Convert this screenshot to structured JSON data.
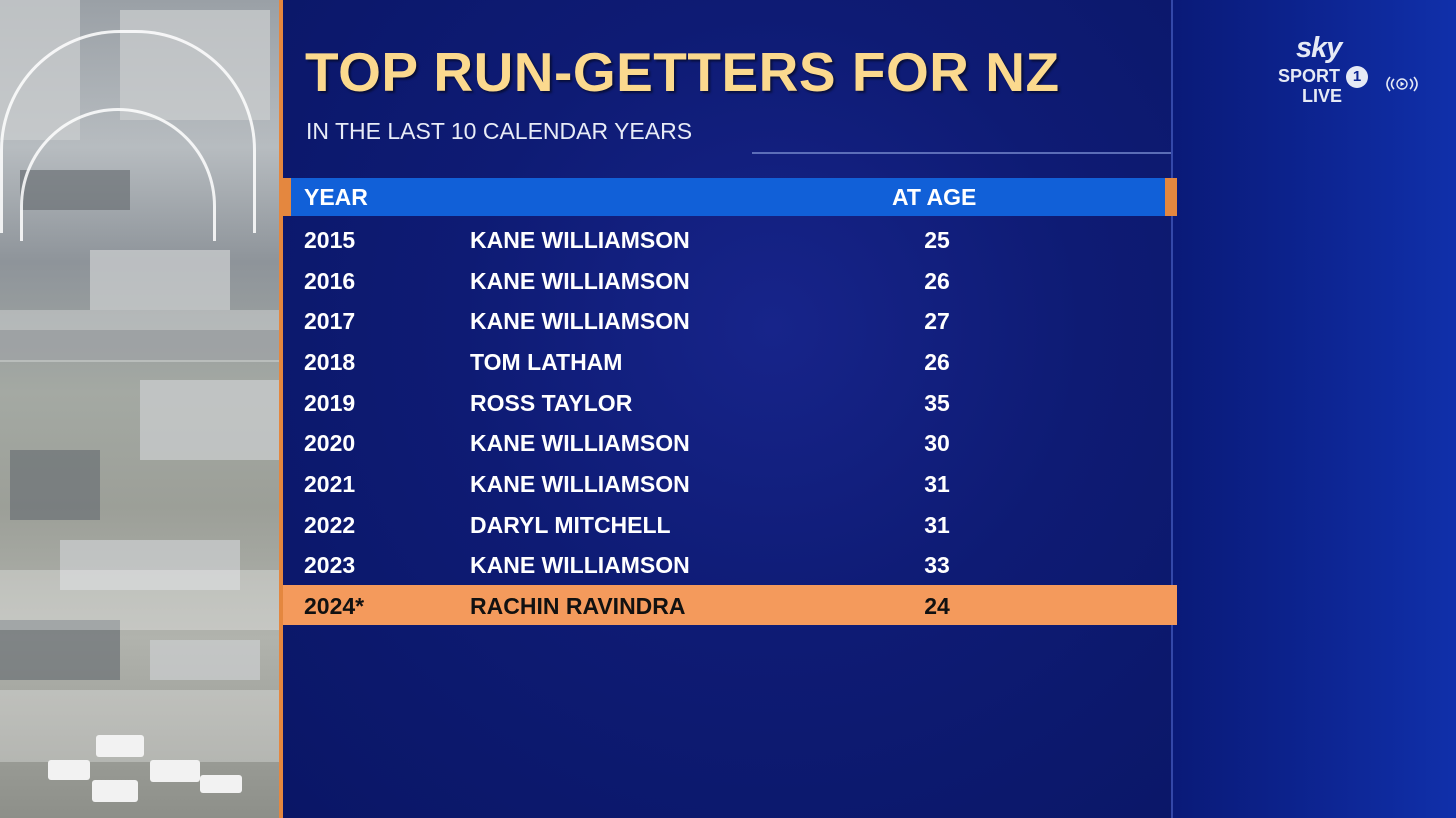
{
  "title": "TOP RUN-GETTERS FOR NZ",
  "subtitle": "IN THE LAST 10 CALENDAR YEARS",
  "table": {
    "headers": {
      "year": "YEAR",
      "age": "AT AGE"
    },
    "rows": [
      {
        "year": "2015",
        "name": "KANE WILLIAMSON",
        "age": "25"
      },
      {
        "year": "2016",
        "name": "KANE WILLIAMSON",
        "age": "26"
      },
      {
        "year": "2017",
        "name": "KANE WILLIAMSON",
        "age": "27"
      },
      {
        "year": "2018",
        "name": "TOM LATHAM",
        "age": "26"
      },
      {
        "year": "2019",
        "name": "ROSS TAYLOR",
        "age": "35"
      },
      {
        "year": "2020",
        "name": "KANE WILLIAMSON",
        "age": "30"
      },
      {
        "year": "2021",
        "name": "KANE WILLIAMSON",
        "age": "31"
      },
      {
        "year": "2022",
        "name": "DARYL MITCHELL",
        "age": "31"
      },
      {
        "year": "2023",
        "name": "KANE WILLIAMSON",
        "age": "33"
      },
      {
        "year": "2024*",
        "name": "RACHIN RAVINDRA",
        "age": "24"
      }
    ],
    "highlighted_row": 9
  },
  "logo": {
    "brand": "sky",
    "channel": "SPORT",
    "number": "1",
    "live": "LIVE",
    "icon": "live-broadcast-icon"
  },
  "colors": {
    "title": "#fbd98e",
    "panel": "#0e1b74",
    "header_bar": "#1160d8",
    "highlight": "#f49a5c",
    "accent": "#e4873f"
  }
}
